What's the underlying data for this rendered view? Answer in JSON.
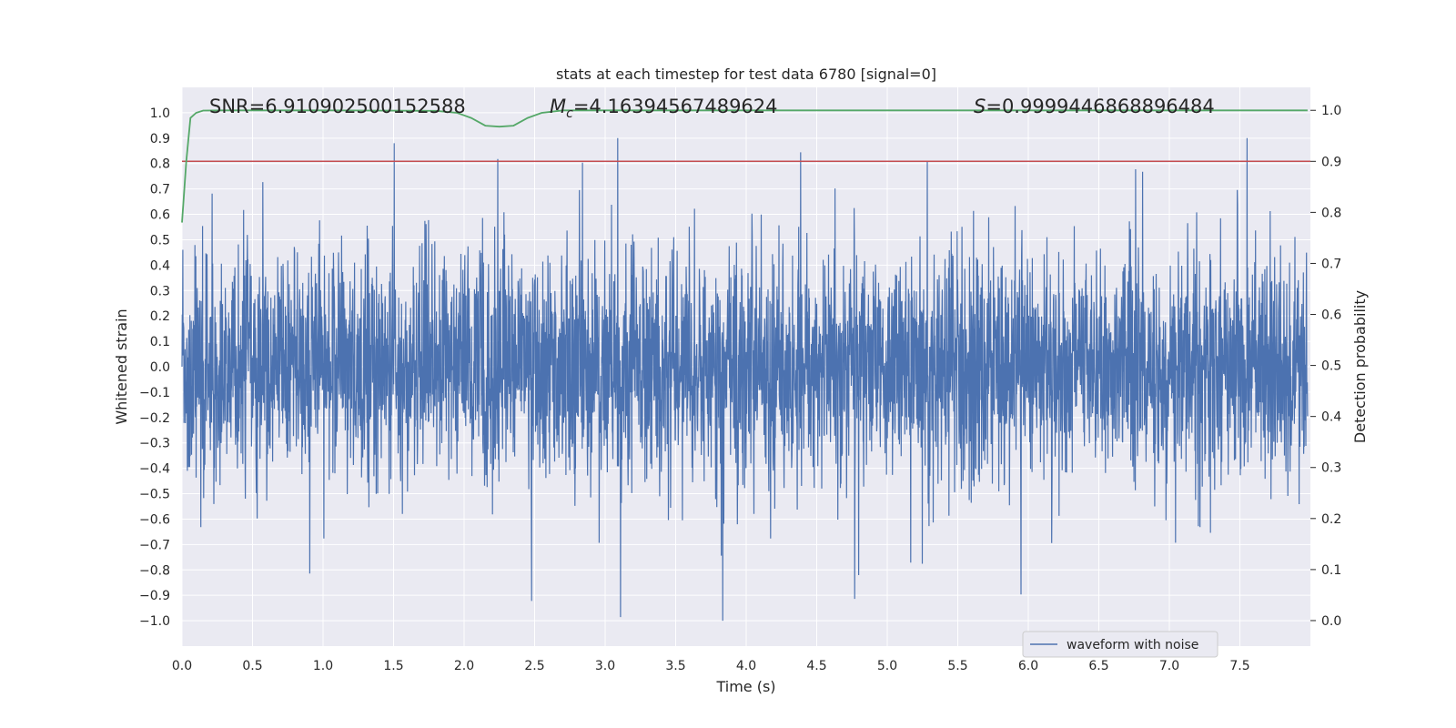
{
  "chart_data": {
    "type": "line",
    "title": "stats at each timestep for test data 6780 [signal=0]",
    "xlabel": "Time (s)",
    "ylabel_left": "Whitened strain",
    "ylabel_right": "Detection probability",
    "xlim": [
      0.0,
      8.0
    ],
    "ylim_left": [
      -1.1,
      1.1
    ],
    "ylim_right": [
      -0.05,
      1.045
    ],
    "x_ticks": [
      "0.0",
      "0.5",
      "1.0",
      "1.5",
      "2.0",
      "2.5",
      "3.0",
      "3.5",
      "4.0",
      "4.5",
      "5.0",
      "5.5",
      "6.0",
      "6.5",
      "7.0",
      "7.5"
    ],
    "x_tick_values": [
      0.0,
      0.5,
      1.0,
      1.5,
      2.0,
      2.5,
      3.0,
      3.5,
      4.0,
      4.5,
      5.0,
      5.5,
      6.0,
      6.5,
      7.0,
      7.5
    ],
    "y_left_ticks": [
      "1.0",
      "0.9",
      "0.8",
      "0.7",
      "0.6",
      "0.5",
      "0.4",
      "0.3",
      "0.2",
      "0.1",
      "0.0",
      "−0.1",
      "−0.2",
      "−0.3",
      "−0.4",
      "−0.5",
      "−0.6",
      "−0.7",
      "−0.8",
      "−0.9",
      "−1.0"
    ],
    "y_left_tick_values": [
      1.0,
      0.9,
      0.8,
      0.7,
      0.6,
      0.5,
      0.4,
      0.3,
      0.2,
      0.1,
      0.0,
      -0.1,
      -0.2,
      -0.3,
      -0.4,
      -0.5,
      -0.6,
      -0.7,
      -0.8,
      -0.9,
      -1.0
    ],
    "y_right_ticks": [
      "1.0",
      "0.9",
      "0.8",
      "0.7",
      "0.6",
      "0.5",
      "0.4",
      "0.3",
      "0.2",
      "0.1",
      "0.0"
    ],
    "y_right_tick_values": [
      1.0,
      0.9,
      0.8,
      0.7,
      0.6,
      0.5,
      0.4,
      0.3,
      0.2,
      0.1,
      0.0
    ],
    "annotations": {
      "snr": "SNR=6.910902500152588",
      "mc": "=4.16394567489624",
      "mc_symbol": "M",
      "mc_sub": "c",
      "s": "=0.9999446868896484",
      "s_symbol": "S"
    },
    "legend": {
      "label": "waveform with noise",
      "placement": "lower-right"
    },
    "threshold_right": 0.9,
    "waveform": {
      "name": "waveform with noise",
      "samples": 4000,
      "seed": 6780,
      "envelope_left": [
        -1.0,
        0.9
      ]
    },
    "probability_series": {
      "name": "detection probability",
      "x": [
        0.0,
        0.03,
        0.06,
        0.1,
        0.15,
        0.3,
        1.0,
        1.8,
        1.95,
        2.05,
        2.15,
        2.25,
        2.35,
        2.45,
        2.55,
        2.7,
        3.5,
        5.0,
        6.5,
        7.98
      ],
      "y": [
        0.78,
        0.9,
        0.985,
        0.995,
        0.9995,
        0.9999,
        0.9999,
        0.999,
        0.995,
        0.985,
        0.97,
        0.968,
        0.97,
        0.985,
        0.995,
        0.9999,
        0.9999,
        0.9999,
        0.9999,
        0.9999
      ]
    }
  },
  "colors": {
    "background": "#eaeaf2",
    "grid": "#ffffff",
    "waveform": "#4c72b0",
    "probability": "#55a868",
    "threshold": "#c44e52",
    "text": "#262626"
  }
}
